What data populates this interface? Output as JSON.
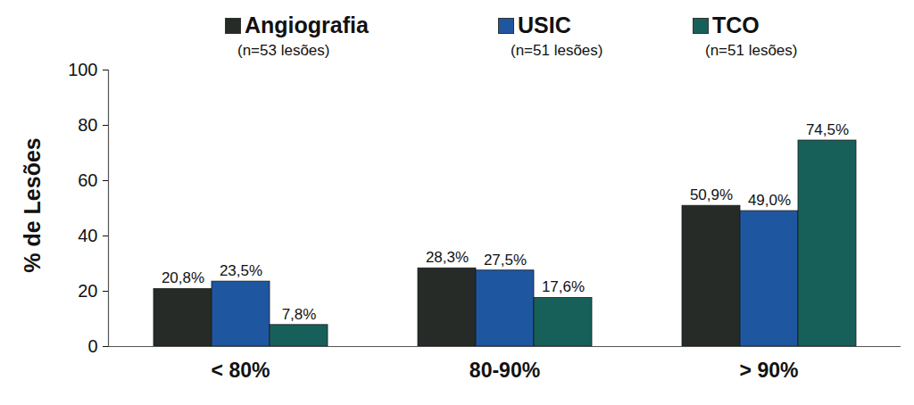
{
  "chart_data": {
    "type": "bar",
    "ylabel": "% de Lesões",
    "categories": [
      "< 80%",
      "80-90%",
      "> 90%"
    ],
    "series": [
      {
        "name": "Angiografia",
        "color": "#262b28",
        "values": [
          20.8,
          28.3,
          50.9
        ],
        "value_labels": [
          "20,8%",
          "28,3%",
          "50,9%"
        ]
      },
      {
        "name": "USIC",
        "color": "#1f56a0",
        "values": [
          23.5,
          27.5,
          49.0
        ],
        "value_labels": [
          "23,5%",
          "27,5%",
          "49,0%"
        ]
      },
      {
        "name": "TCO",
        "color": "#17605a",
        "values": [
          7.8,
          17.6,
          74.5
        ],
        "value_labels": [
          "7,8%",
          "17,6%",
          "74,5%"
        ]
      }
    ],
    "annotations": [
      "(n=53 lesões)",
      "(n=51 lesões)",
      "(n=51 lesões)"
    ],
    "ylim": [
      0,
      100
    ],
    "yticks": [
      0,
      20,
      40,
      60,
      80,
      100
    ],
    "grid": false,
    "data_labels": true,
    "legend": "top"
  }
}
